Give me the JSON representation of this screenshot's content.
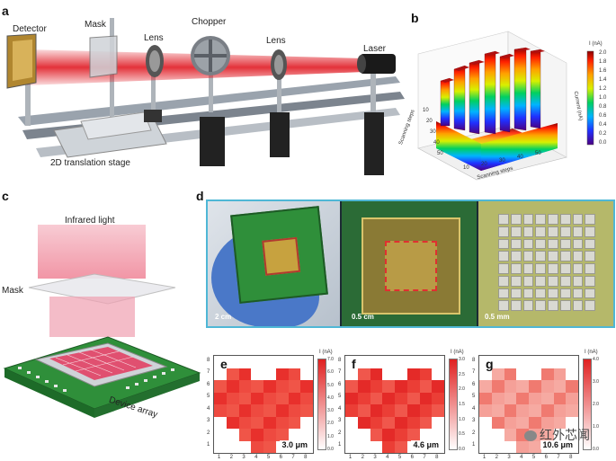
{
  "panel_a": {
    "letter": "a",
    "labels": {
      "detector": "Detector",
      "mask": "Mask",
      "lens1": "Lens",
      "chopper": "Chopper",
      "lens2": "Lens",
      "laser": "Laser",
      "stage": "2D translation stage"
    }
  },
  "panel_b": {
    "letter": "b",
    "colorbar_title": "I (nA)",
    "colorbar_ticks": [
      "2.0",
      "1.8",
      "1.6",
      "1.4",
      "1.2",
      "1.0",
      "0.8",
      "0.6",
      "0.4",
      "0.2",
      "0.0"
    ],
    "y_axis_label": "Scanning steps",
    "x_axis_label": "Scanning steps",
    "y_ticks": [
      "10",
      "20",
      "30",
      "40",
      "50"
    ],
    "x_ticks": [
      "10",
      "20",
      "30",
      "40",
      "50"
    ],
    "right_axis_label": "Current (nA)"
  },
  "panel_c": {
    "letter": "c",
    "infrared": "Infrared light",
    "mask": "Mask",
    "device": "Device array"
  },
  "panel_d": {
    "letter": "d",
    "scale1": "2 cm",
    "scale2": "0.5 cm",
    "scale3": "0.5 mm"
  },
  "heatmaps": [
    {
      "letter": "e",
      "wavelength": "3.0 μm",
      "cb_title": "I (nA)",
      "cb_ticks": [
        "7.0",
        "6.0",
        "5.0",
        "4.0",
        "3.0",
        "2.0",
        "1.0",
        "0.0"
      ]
    },
    {
      "letter": "f",
      "wavelength": "4.6 μm",
      "cb_title": "I (nA)",
      "cb_ticks": [
        "3.0",
        "2.5",
        "2.0",
        "1.5",
        "1.0",
        "0.5",
        "0.0"
      ]
    },
    {
      "letter": "g",
      "wavelength": "10.6 μm",
      "cb_title": "I (nA)",
      "cb_ticks": [
        "4.0",
        "3.0",
        "2.0",
        "1.0",
        "0.0"
      ]
    }
  ],
  "axis_ticks": [
    "1",
    "2",
    "3",
    "4",
    "5",
    "6",
    "7",
    "8"
  ],
  "watermark": "红外芯闻",
  "colors": {
    "laser": "#e01b24",
    "pcb_green": "#2f8f3a",
    "glove_blue": "#4a78c8",
    "frame_cyan": "#4fb7d6"
  }
}
